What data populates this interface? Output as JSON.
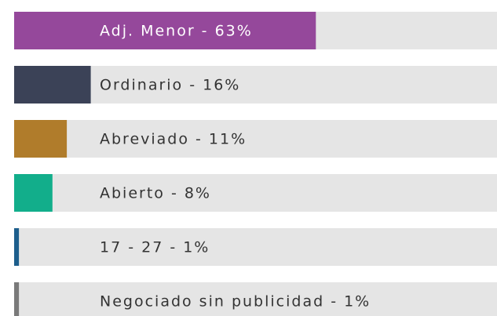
{
  "chart_data": {
    "type": "bar",
    "orientation": "horizontal",
    "values": [
      63,
      16,
      11,
      8,
      1,
      1
    ],
    "value_labels": [
      "Adj. Menor - 63%",
      "Ordinario - 16%",
      "Abreviado - 11%",
      "Abierto - 8%",
      "17 - 27 - 1%",
      "Negociado sin publicidad - 1%"
    ],
    "colors": [
      "#95489b",
      "#3b4257",
      "#b07c2b",
      "#12ae8b",
      "#1d5e8c",
      "#7a7a7a"
    ],
    "xlim": [
      0,
      100
    ]
  }
}
